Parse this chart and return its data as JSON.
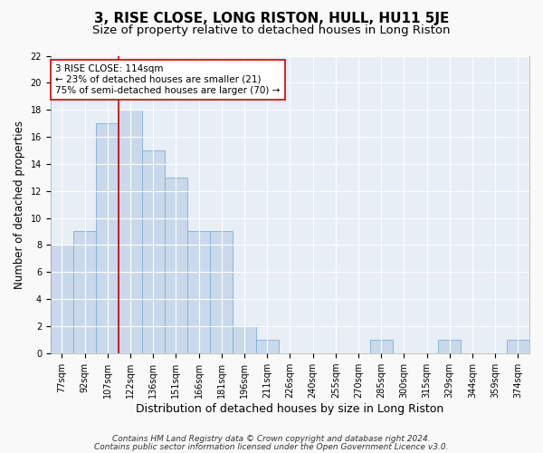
{
  "title": "3, RISE CLOSE, LONG RISTON, HULL, HU11 5JE",
  "subtitle": "Size of property relative to detached houses in Long Riston",
  "xlabel": "Distribution of detached houses by size in Long Riston",
  "ylabel": "Number of detached properties",
  "categories": [
    "77sqm",
    "92sqm",
    "107sqm",
    "122sqm",
    "136sqm",
    "151sqm",
    "166sqm",
    "181sqm",
    "196sqm",
    "211sqm",
    "226sqm",
    "240sqm",
    "255sqm",
    "270sqm",
    "285sqm",
    "300sqm",
    "315sqm",
    "329sqm",
    "344sqm",
    "359sqm",
    "374sqm"
  ],
  "values": [
    8,
    9,
    17,
    18,
    15,
    13,
    9,
    9,
    2,
    1,
    0,
    0,
    0,
    0,
    1,
    0,
    0,
    1,
    0,
    0,
    1
  ],
  "bar_color": "#c9d9eb",
  "bar_edge_color": "#7bafd4",
  "vline_index": 2.5,
  "vline_color": "#cc0000",
  "annotation_text": "3 RISE CLOSE: 114sqm\n← 23% of detached houses are smaller (21)\n75% of semi-detached houses are larger (70) →",
  "ann_box_color": "white",
  "ann_edge_color": "#cc0000",
  "ylim": [
    0,
    22
  ],
  "yticks": [
    0,
    2,
    4,
    6,
    8,
    10,
    12,
    14,
    16,
    18,
    20,
    22
  ],
  "footer1": "Contains HM Land Registry data © Crown copyright and database right 2024.",
  "footer2": "Contains public sector information licensed under the Open Government Licence v3.0.",
  "fig_bg_color": "#f9f9f9",
  "plot_bg_color": "#e8eef5",
  "grid_color": "#ffffff",
  "title_fontsize": 11,
  "subtitle_fontsize": 9.5,
  "ylabel_fontsize": 8.5,
  "xlabel_fontsize": 9,
  "tick_fontsize": 7,
  "ann_fontsize": 7.5,
  "footer_fontsize": 6.5
}
